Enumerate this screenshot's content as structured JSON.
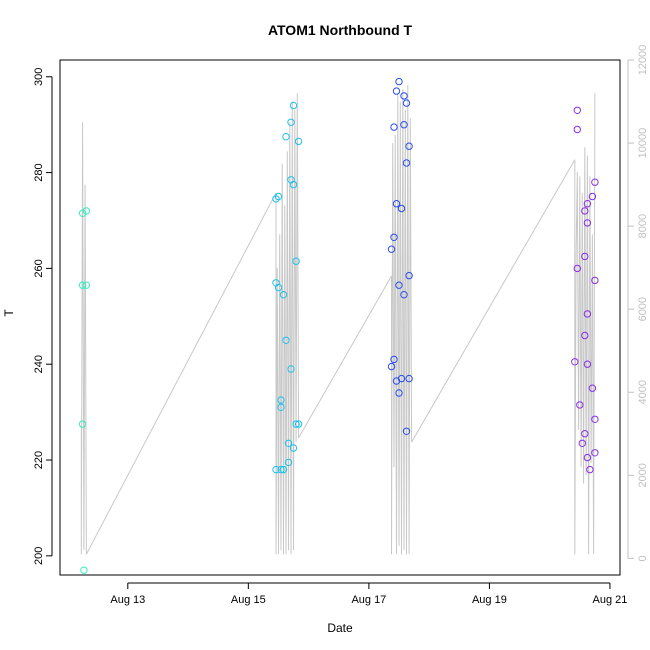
{
  "chart_data": {
    "type": "scatter",
    "title": "ATOM1 Northbound T",
    "xlabel": "Date",
    "ylabel": "T",
    "xlim": [
      "2016-08-11T21:00",
      "2016-08-21T04:00"
    ],
    "ylim": [
      196,
      303.5
    ],
    "y2lim": [
      -400,
      12000
    ],
    "x_ticks": [
      {
        "date": "2016-08-13",
        "label": "Aug 13"
      },
      {
        "date": "2016-08-15",
        "label": "Aug 15"
      },
      {
        "date": "2016-08-17",
        "label": "Aug 17"
      },
      {
        "date": "2016-08-19",
        "label": "Aug 19"
      },
      {
        "date": "2016-08-21",
        "label": "Aug 21"
      }
    ],
    "y_ticks": [
      200,
      220,
      240,
      260,
      280,
      300
    ],
    "y2_ticks": [
      0,
      2000,
      4000,
      6000,
      8000,
      10000,
      12000
    ],
    "grid": false,
    "legend": "none",
    "colors": {
      "line_series": "#c8c8c8",
      "right_axis": "#c0c0c0",
      "frame": "#000000"
    },
    "series": [
      {
        "color": "#33eec0",
        "points": [
          [
            "2016-08-12T06:00",
            271.5
          ],
          [
            "2016-08-12T06:00",
            256.5
          ],
          [
            "2016-08-12T06:00",
            227.5
          ],
          [
            "2016-08-12T06:30",
            197
          ],
          [
            "2016-08-12T07:30",
            272
          ],
          [
            "2016-08-12T07:30",
            256.5
          ]
        ]
      },
      {
        "color": "#20c0ea",
        "points": [
          [
            "2016-08-15T11:00",
            274.5
          ],
          [
            "2016-08-15T11:00",
            257
          ],
          [
            "2016-08-15T11:00",
            218
          ],
          [
            "2016-08-15T12:00",
            275
          ],
          [
            "2016-08-15T12:00",
            256
          ],
          [
            "2016-08-15T13:00",
            232.5
          ],
          [
            "2016-08-15T13:00",
            231
          ],
          [
            "2016-08-15T13:00",
            218
          ],
          [
            "2016-08-15T14:00",
            218
          ],
          [
            "2016-08-15T14:00",
            254.5
          ],
          [
            "2016-08-15T15:00",
            287.5
          ],
          [
            "2016-08-15T15:00",
            245
          ],
          [
            "2016-08-15T16:00",
            219.5
          ],
          [
            "2016-08-15T16:00",
            223.5
          ],
          [
            "2016-08-15T17:00",
            290.5
          ],
          [
            "2016-08-15T17:00",
            278.5
          ],
          [
            "2016-08-15T18:00",
            277.5
          ],
          [
            "2016-08-15T17:00",
            239
          ],
          [
            "2016-08-15T18:00",
            222.5
          ],
          [
            "2016-08-15T18:00",
            294
          ],
          [
            "2016-08-15T19:00",
            261.5
          ],
          [
            "2016-08-15T19:00",
            227.5
          ],
          [
            "2016-08-15T20:00",
            227.5
          ],
          [
            "2016-08-15T20:00",
            286.5
          ]
        ]
      },
      {
        "color": "#2a4ee8",
        "points": [
          [
            "2016-08-17T09:00",
            264
          ],
          [
            "2016-08-17T10:00",
            289.5
          ],
          [
            "2016-08-17T09:00",
            239.5
          ],
          [
            "2016-08-17T10:00",
            266.5
          ],
          [
            "2016-08-17T11:00",
            297
          ],
          [
            "2016-08-17T10:00",
            241
          ],
          [
            "2016-08-17T12:00",
            299
          ],
          [
            "2016-08-17T11:00",
            273.5
          ],
          [
            "2016-08-17T11:00",
            236.5
          ],
          [
            "2016-08-17T12:00",
            256.5
          ],
          [
            "2016-08-17T12:00",
            234
          ],
          [
            "2016-08-17T13:00",
            272.5
          ],
          [
            "2016-08-17T13:00",
            237
          ],
          [
            "2016-08-17T14:00",
            296
          ],
          [
            "2016-08-17T14:00",
            290
          ],
          [
            "2016-08-17T14:00",
            254.5
          ],
          [
            "2016-08-17T15:00",
            294.5
          ],
          [
            "2016-08-17T15:00",
            282
          ],
          [
            "2016-08-17T15:00",
            226
          ],
          [
            "2016-08-17T16:00",
            285.5
          ],
          [
            "2016-08-17T16:00",
            258.5
          ],
          [
            "2016-08-17T16:00",
            237
          ]
        ]
      },
      {
        "color": "#8a2ee6",
        "points": [
          [
            "2016-08-20T11:00",
            293
          ],
          [
            "2016-08-20T11:00",
            289
          ],
          [
            "2016-08-20T11:00",
            260
          ],
          [
            "2016-08-20T10:00",
            240.5
          ],
          [
            "2016-08-20T12:00",
            231.5
          ],
          [
            "2016-08-20T13:00",
            223.5
          ],
          [
            "2016-08-20T14:00",
            272
          ],
          [
            "2016-08-20T14:00",
            262.5
          ],
          [
            "2016-08-20T14:00",
            246
          ],
          [
            "2016-08-20T15:00",
            240
          ],
          [
            "2016-08-20T14:00",
            225.5
          ],
          [
            "2016-08-20T15:00",
            220.5
          ],
          [
            "2016-08-20T15:00",
            273.5
          ],
          [
            "2016-08-20T15:00",
            269.5
          ],
          [
            "2016-08-20T15:00",
            250.5
          ],
          [
            "2016-08-20T16:00",
            218
          ],
          [
            "2016-08-20T17:00",
            275
          ],
          [
            "2016-08-20T17:00",
            235
          ],
          [
            "2016-08-20T18:00",
            278
          ],
          [
            "2016-08-20T18:00",
            257.5
          ],
          [
            "2016-08-20T18:00",
            228.5
          ],
          [
            "2016-08-20T18:00",
            221.5
          ]
        ]
      }
    ],
    "secondary_series": {
      "axis": "right",
      "color": "#c8c8c8",
      "segments": [
        [
          [
            "2016-08-12T05:30",
            3200
          ],
          [
            "2016-08-12T05:30",
            100
          ],
          [
            "2016-08-12T06:00",
            10500
          ],
          [
            "2016-08-12T06:30",
            200
          ],
          [
            "2016-08-12T07:00",
            9000
          ],
          [
            "2016-08-12T07:30",
            100
          ]
        ],
        [
          [
            "2016-08-12T07:30",
            100
          ],
          [
            "2016-08-15T11:00",
            8800
          ]
        ],
        [
          [
            "2016-08-15T11:00",
            8800
          ],
          [
            "2016-08-15T11:00",
            100
          ],
          [
            "2016-08-15T11:30",
            7000
          ],
          [
            "2016-08-15T12:00",
            100
          ],
          [
            "2016-08-15T12:30",
            7800
          ],
          [
            "2016-08-15T13:00",
            200
          ],
          [
            "2016-08-15T13:30",
            9500
          ],
          [
            "2016-08-15T14:00",
            100
          ],
          [
            "2016-08-15T14:30",
            8500
          ],
          [
            "2016-08-15T15:00",
            100
          ],
          [
            "2016-08-15T15:30",
            9800
          ],
          [
            "2016-08-15T16:00",
            200
          ],
          [
            "2016-08-15T16:30",
            10500
          ],
          [
            "2016-08-15T17:00",
            100
          ],
          [
            "2016-08-15T17:30",
            11000
          ],
          [
            "2016-08-15T18:00",
            200
          ],
          [
            "2016-08-15T18:30",
            10800
          ],
          [
            "2016-08-15T19:00",
            2800
          ],
          [
            "2016-08-15T19:30",
            11200
          ],
          [
            "2016-08-15T20:00",
            2900
          ]
        ],
        [
          [
            "2016-08-15T20:00",
            2900
          ],
          [
            "2016-08-17T09:00",
            6800
          ]
        ],
        [
          [
            "2016-08-17T09:00",
            6800
          ],
          [
            "2016-08-17T09:00",
            100
          ],
          [
            "2016-08-17T09:30",
            10000
          ],
          [
            "2016-08-17T10:00",
            2200
          ],
          [
            "2016-08-17T10:30",
            10200
          ],
          [
            "2016-08-17T11:00",
            100
          ],
          [
            "2016-08-17T11:30",
            11200
          ],
          [
            "2016-08-17T12:00",
            300
          ],
          [
            "2016-08-17T12:30",
            11000
          ],
          [
            "2016-08-17T13:00",
            100
          ],
          [
            "2016-08-17T13:30",
            11300
          ],
          [
            "2016-08-17T14:00",
            200
          ],
          [
            "2016-08-17T14:30",
            10800
          ],
          [
            "2016-08-17T15:00",
            100
          ],
          [
            "2016-08-17T15:30",
            11400
          ],
          [
            "2016-08-17T16:00",
            100
          ],
          [
            "2016-08-17T16:30",
            10600
          ],
          [
            "2016-08-17T17:00",
            2800
          ]
        ],
        [
          [
            "2016-08-17T17:00",
            2800
          ],
          [
            "2016-08-20T10:00",
            9600
          ]
        ],
        [
          [
            "2016-08-20T10:00",
            9600
          ],
          [
            "2016-08-20T10:00",
            100
          ],
          [
            "2016-08-20T10:30",
            7300
          ],
          [
            "2016-08-20T11:00",
            9300
          ],
          [
            "2016-08-20T11:30",
            3100
          ],
          [
            "2016-08-20T12:00",
            9200
          ],
          [
            "2016-08-20T12:30",
            2200
          ],
          [
            "2016-08-20T13:00",
            8800
          ],
          [
            "2016-08-20T13:30",
            1800
          ],
          [
            "2016-08-20T14:00",
            9900
          ],
          [
            "2016-08-20T14:30",
            2000
          ],
          [
            "2016-08-20T15:00",
            9700
          ],
          [
            "2016-08-20T15:30",
            100
          ],
          [
            "2016-08-20T16:00",
            9200
          ],
          [
            "2016-08-20T16:30",
            2300
          ],
          [
            "2016-08-20T17:00",
            7800
          ],
          [
            "2016-08-20T17:30",
            100
          ],
          [
            "2016-08-20T18:00",
            11200
          ]
        ]
      ]
    }
  }
}
